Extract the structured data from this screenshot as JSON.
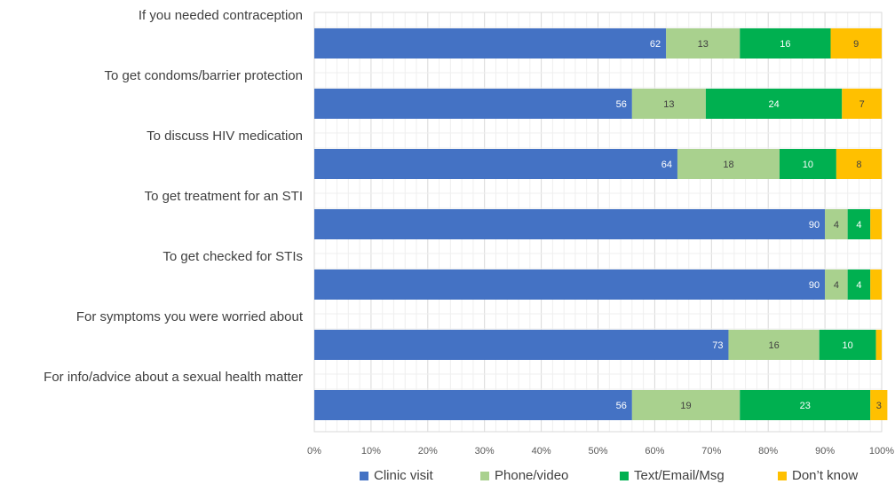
{
  "chart_data": {
    "type": "bar",
    "orientation": "horizontal",
    "stacked": true,
    "normalized": true,
    "title": "",
    "xlabel": "",
    "ylabel": "",
    "xlim": [
      0,
      100
    ],
    "x_ticks": [
      "0%",
      "10%",
      "20%",
      "30%",
      "40%",
      "50%",
      "60%",
      "70%",
      "80%",
      "90%",
      "100%"
    ],
    "grid": true,
    "legend_position": "bottom",
    "categories": [
      "If you needed contraception",
      "To get condoms/barrier protection",
      "To discuss HIV medication",
      "To get treatment for an STI",
      "To get checked for STIs",
      "For symptoms you were worried about",
      "For info/advice about a sexual health matter"
    ],
    "series": [
      {
        "name": "Clinic visit",
        "color": "#4472C4",
        "label_color": "#ffffff",
        "values": [
          62,
          56,
          64,
          90,
          90,
          73,
          56
        ]
      },
      {
        "name": "Phone/video",
        "color": "#A9D18E",
        "label_color": "#404040",
        "values": [
          13,
          13,
          18,
          4,
          4,
          16,
          19
        ]
      },
      {
        "name": "Text/Email/Msg",
        "color": "#00B050",
        "label_color": "#ffffff",
        "values": [
          16,
          24,
          10,
          4,
          4,
          10,
          23
        ]
      },
      {
        "name": "Don’t know",
        "color": "#FFC000",
        "label_color": "#404040",
        "values": [
          9,
          7,
          8,
          2,
          2,
          1,
          3
        ]
      }
    ],
    "data_labels": [
      [
        "62",
        "56",
        "64",
        "90",
        "90",
        "73",
        "56"
      ],
      [
        "13",
        "13",
        "18",
        "4",
        "4",
        "16",
        "19"
      ],
      [
        "16",
        "24",
        "10",
        "4",
        "4",
        "10",
        "23"
      ],
      [
        "9",
        "7",
        "8",
        "",
        "",
        "",
        "3"
      ]
    ]
  }
}
